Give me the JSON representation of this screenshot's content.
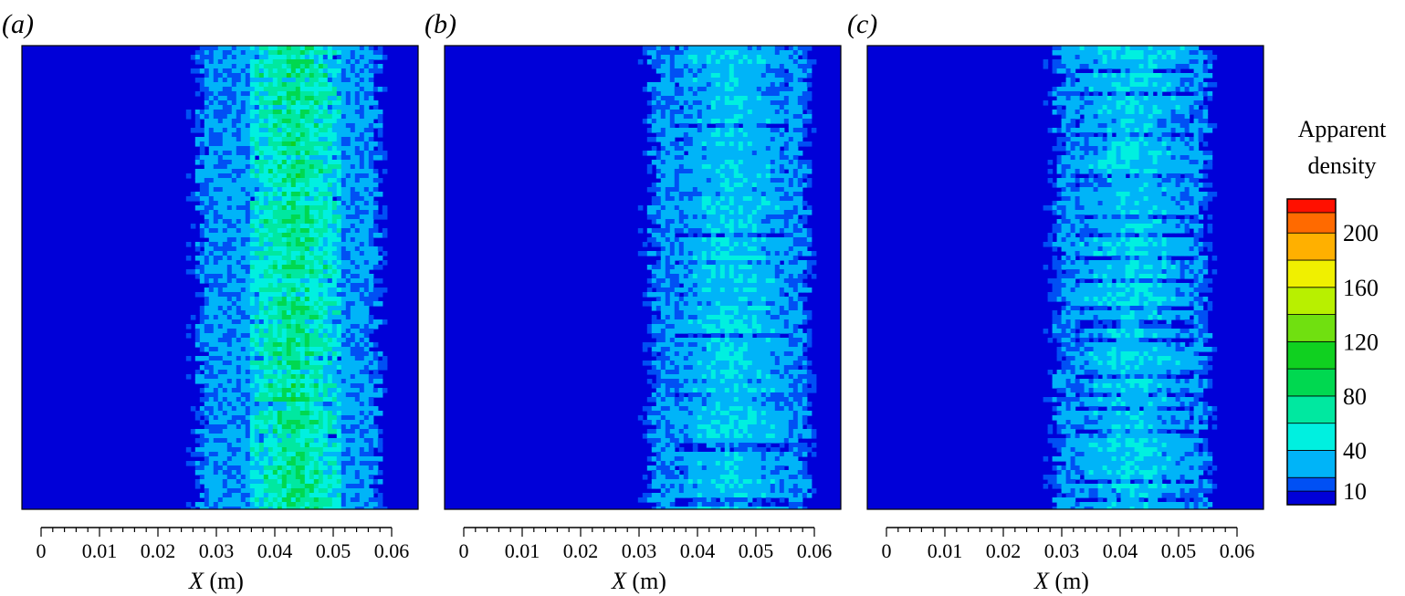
{
  "chart_data": [
    {
      "type": "heatmap",
      "panel_label": "(a)",
      "xlabel": "X (m)",
      "xlim": [
        0,
        0.06
      ],
      "x_ticks": [
        "0",
        "0.01",
        "0.02",
        "0.03",
        "0.04",
        "0.05",
        "0.06"
      ],
      "band": {
        "x_start": 0.027,
        "x_end": 0.057,
        "core_start": 0.035,
        "core_end": 0.051,
        "level": 75
      }
    },
    {
      "type": "heatmap",
      "panel_label": "(b)",
      "xlabel": "X (m)",
      "xlim": [
        0,
        0.06
      ],
      "x_ticks": [
        "0",
        "0.01",
        "0.02",
        "0.03",
        "0.04",
        "0.05",
        "0.06"
      ],
      "band": {
        "x_start": 0.032,
        "x_end": 0.058,
        "core_start": 0.036,
        "core_end": 0.055,
        "level": 38
      }
    },
    {
      "type": "heatmap",
      "panel_label": "(c)",
      "xlabel": "X (m)",
      "xlim": [
        0,
        0.06
      ],
      "x_ticks": [
        "0",
        "0.01",
        "0.02",
        "0.03",
        "0.04",
        "0.05",
        "0.06"
      ],
      "band": {
        "x_start": 0.029,
        "x_end": 0.054,
        "core_start": 0.032,
        "core_end": 0.052,
        "level": 40
      }
    }
  ],
  "colorbar": {
    "title_line1": "Apparent",
    "title_line2": "density",
    "tick_labels": [
      "200",
      "160",
      "120",
      "80",
      "40",
      "10"
    ],
    "tick_values": [
      200,
      160,
      120,
      80,
      40,
      10
    ],
    "levels": [
      {
        "min": 0,
        "max": 10,
        "color": "#0000d8"
      },
      {
        "min": 10,
        "max": 20,
        "color": "#0050f4"
      },
      {
        "min": 20,
        "max": 40,
        "color": "#00b4f8"
      },
      {
        "min": 40,
        "max": 60,
        "color": "#00f0e0"
      },
      {
        "min": 60,
        "max": 80,
        "color": "#00e8a0"
      },
      {
        "min": 80,
        "max": 100,
        "color": "#00d850"
      },
      {
        "min": 100,
        "max": 120,
        "color": "#10d020"
      },
      {
        "min": 120,
        "max": 140,
        "color": "#70e010"
      },
      {
        "min": 140,
        "max": 160,
        "color": "#b8f000"
      },
      {
        "min": 160,
        "max": 180,
        "color": "#f0f000"
      },
      {
        "min": 180,
        "max": 200,
        "color": "#ffb000"
      },
      {
        "min": 200,
        "max": 215,
        "color": "#ff6a00"
      },
      {
        "min": 215,
        "max": 225,
        "color": "#ff1000"
      }
    ]
  }
}
